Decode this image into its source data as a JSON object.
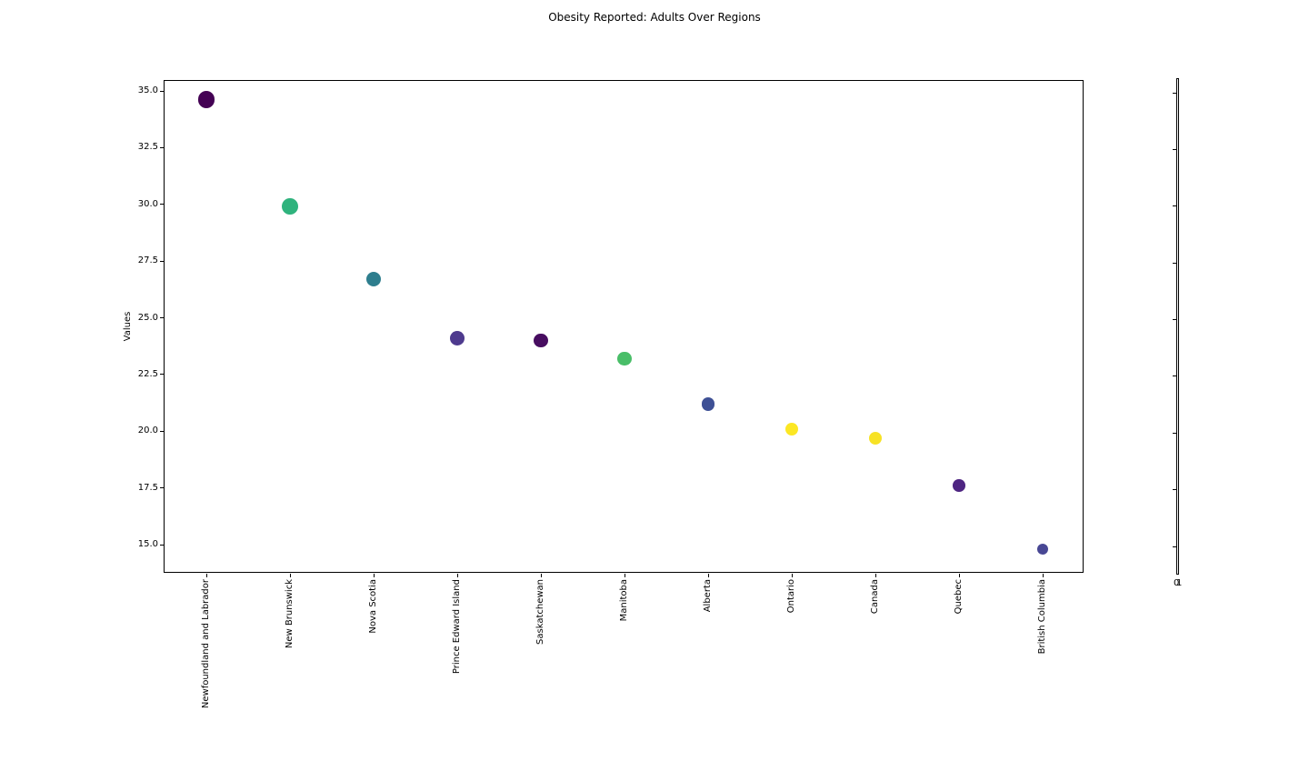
{
  "title": "Obesity Reported: Adults Over Regions",
  "chart_data": {
    "type": "scatter",
    "title": "Obesity Reported: Adults Over Regions",
    "xlabel": "",
    "ylabel": "Values",
    "categories": [
      "Newfoundland and Labrador",
      "New Brunswick",
      "Nova Scotia",
      "Prince Edward Island",
      "Saskatchewan",
      "Manitoba",
      "Alberta",
      "Ontario",
      "Canada",
      "Quebec",
      "British Columbia"
    ],
    "values": [
      34.6,
      29.9,
      26.7,
      24.1,
      24.0,
      23.2,
      21.2,
      20.1,
      19.7,
      17.6,
      14.8
    ],
    "point_colors": [
      "#440154",
      "#2fb37d",
      "#2e7e8e",
      "#4e3a8e",
      "#470d60",
      "#49be68",
      "#3e5095",
      "#fce724",
      "#f7e225",
      "#4e2582",
      "#484794"
    ],
    "marker": "circle, area scaled by value, viridis-sampled colors",
    "ylim": [
      13.7,
      35.5
    ],
    "yticks": [
      35.0,
      32.5,
      30.0,
      27.5,
      25.0,
      22.5,
      20.0,
      17.5,
      15.0
    ],
    "ytick_labels": [
      "35.0",
      "32.5",
      "30.0",
      "27.5",
      "25.0",
      "22.5",
      "20.0",
      "17.5",
      "15.0"
    ],
    "grid": false,
    "legend": "none",
    "colorbar_axis": {
      "description": "degenerate (zero-width) colorbar outline on right with unlabeled ticks",
      "n_ticks": 9,
      "bottom_labels": [
        "0",
        "1"
      ]
    }
  }
}
